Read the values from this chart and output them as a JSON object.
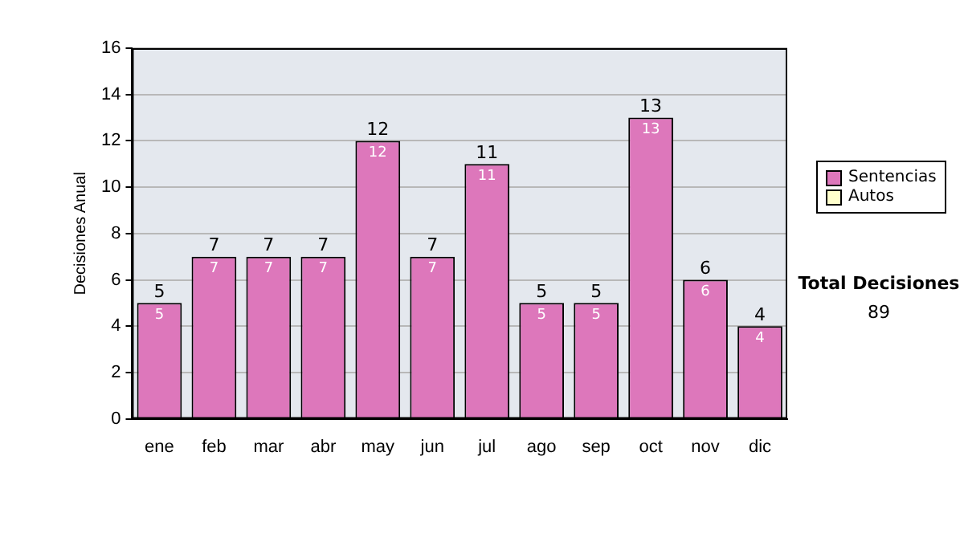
{
  "chart_data": {
    "type": "bar",
    "stacked": true,
    "ylabel": "Decisiones Anual",
    "categories": [
      "ene",
      "feb",
      "mar",
      "abr",
      "may",
      "jun",
      "jul",
      "ago",
      "sep",
      "oct",
      "nov",
      "dic"
    ],
    "series": [
      {
        "name": "Sentencias",
        "color": "#dd77bb",
        "values": [
          5,
          7,
          7,
          7,
          12,
          7,
          11,
          5,
          5,
          13,
          6,
          4
        ],
        "value_labels": [
          "5",
          "7",
          "7",
          "7",
          "12",
          "7",
          "11",
          "5",
          "5",
          "13",
          "6",
          "4"
        ]
      },
      {
        "name": "Autos",
        "color": "#ffffcc",
        "values": [
          0,
          0,
          0,
          0,
          0,
          0,
          0,
          0,
          0,
          0,
          0,
          0
        ],
        "value_labels": [
          null,
          null,
          null,
          null,
          null,
          null,
          null,
          null,
          null,
          null,
          null,
          null
        ]
      }
    ],
    "totals": [
      "5",
      "7",
      "7",
      "7",
      "12",
      "7",
      "11",
      "5",
      "5",
      "13",
      "6",
      "4"
    ],
    "ylim": [
      0,
      16
    ],
    "yticks": [
      0,
      2,
      4,
      6,
      8,
      10,
      12,
      14,
      16
    ],
    "grid": "y",
    "legend": "right",
    "annotations": [
      "Total Decisiones",
      "89"
    ]
  }
}
